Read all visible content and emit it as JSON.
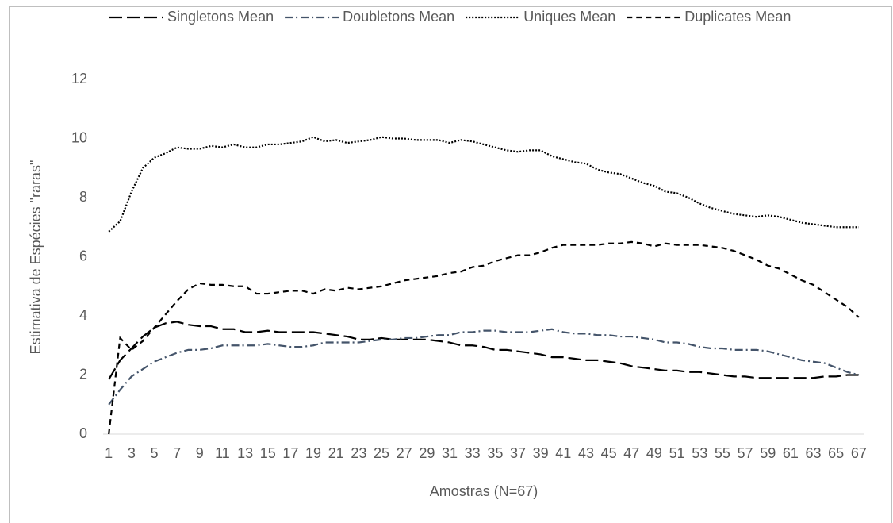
{
  "chart_data": {
    "type": "line",
    "x_label": "Amostras (N=67)",
    "y_label": "Estimativa de Espécies \"raras\"",
    "categories": [
      1,
      null,
      3,
      null,
      5,
      null,
      7,
      null,
      9,
      null,
      11,
      null,
      13,
      null,
      15,
      null,
      17,
      null,
      19,
      null,
      21,
      null,
      23,
      null,
      25,
      null,
      27,
      null,
      29,
      null,
      31,
      null,
      33,
      null,
      35,
      null,
      37,
      null,
      39,
      null,
      41,
      null,
      43,
      null,
      45,
      null,
      47,
      null,
      49,
      null,
      51,
      null,
      53,
      null,
      55,
      null,
      57,
      null,
      59,
      null,
      61,
      null,
      63,
      null,
      65,
      null,
      67
    ],
    "ylim": [
      0,
      12
    ],
    "yticks": [
      0,
      2,
      4,
      6,
      8,
      10,
      12
    ],
    "grid": false,
    "legend": "top",
    "series": [
      {
        "name": "Singletons Mean",
        "color": "#000000",
        "dash": "16,6",
        "values": [
          1.85,
          2.5,
          2.9,
          3.3,
          3.6,
          3.75,
          3.8,
          3.7,
          3.65,
          3.65,
          3.55,
          3.55,
          3.45,
          3.45,
          3.5,
          3.45,
          3.45,
          3.45,
          3.45,
          3.4,
          3.35,
          3.3,
          3.2,
          3.2,
          3.25,
          3.2,
          3.2,
          3.2,
          3.2,
          3.15,
          3.1,
          3.0,
          3.0,
          2.95,
          2.85,
          2.85,
          2.8,
          2.75,
          2.7,
          2.6,
          2.6,
          2.55,
          2.5,
          2.5,
          2.45,
          2.4,
          2.3,
          2.25,
          2.2,
          2.15,
          2.15,
          2.1,
          2.1,
          2.05,
          2.0,
          1.95,
          1.95,
          1.9,
          1.9,
          1.9,
          1.9,
          1.9,
          1.9,
          1.95,
          1.95,
          2.0,
          2.0
        ]
      },
      {
        "name": "Doubletons Mean",
        "color": "#44546a",
        "dash": "10,4,2,4",
        "values": [
          1.0,
          1.5,
          1.95,
          2.2,
          2.45,
          2.6,
          2.75,
          2.85,
          2.85,
          2.9,
          3.0,
          3.0,
          3.0,
          3.0,
          3.05,
          3.0,
          2.95,
          2.95,
          3.0,
          3.1,
          3.1,
          3.1,
          3.1,
          3.15,
          3.2,
          3.2,
          3.25,
          3.25,
          3.3,
          3.35,
          3.35,
          3.45,
          3.45,
          3.5,
          3.5,
          3.45,
          3.45,
          3.45,
          3.5,
          3.55,
          3.45,
          3.4,
          3.4,
          3.35,
          3.35,
          3.3,
          3.3,
          3.25,
          3.2,
          3.1,
          3.1,
          3.05,
          2.95,
          2.9,
          2.9,
          2.85,
          2.85,
          2.85,
          2.8,
          2.7,
          2.6,
          2.5,
          2.45,
          2.4,
          2.25,
          2.1,
          2.0
        ]
      },
      {
        "name": "Uniques Mean",
        "color": "#000000",
        "dash": "2,2",
        "values": [
          6.85,
          7.2,
          8.2,
          9.0,
          9.35,
          9.5,
          9.7,
          9.65,
          9.65,
          9.75,
          9.7,
          9.8,
          9.7,
          9.7,
          9.8,
          9.8,
          9.85,
          9.9,
          10.05,
          9.9,
          9.95,
          9.85,
          9.9,
          9.95,
          10.05,
          10.0,
          10.0,
          9.95,
          9.95,
          9.95,
          9.85,
          9.95,
          9.9,
          9.8,
          9.7,
          9.6,
          9.55,
          9.6,
          9.6,
          9.4,
          9.3,
          9.2,
          9.15,
          8.95,
          8.85,
          8.8,
          8.65,
          8.5,
          8.4,
          8.2,
          8.15,
          8.0,
          7.8,
          7.65,
          7.55,
          7.45,
          7.4,
          7.35,
          7.4,
          7.35,
          7.25,
          7.15,
          7.1,
          7.05,
          7.0,
          7.0,
          7.0
        ]
      },
      {
        "name": "Duplicates Mean",
        "color": "#000000",
        "dash": "7,5",
        "values": [
          0,
          3.25,
          2.85,
          3.15,
          3.6,
          4.05,
          4.5,
          4.9,
          5.1,
          5.05,
          5.05,
          5.0,
          5.0,
          4.75,
          4.75,
          4.8,
          4.85,
          4.85,
          4.75,
          4.9,
          4.85,
          4.95,
          4.9,
          4.95,
          5.0,
          5.1,
          5.2,
          5.25,
          5.3,
          5.35,
          5.45,
          5.5,
          5.65,
          5.7,
          5.85,
          5.95,
          6.05,
          6.05,
          6.15,
          6.3,
          6.4,
          6.4,
          6.4,
          6.4,
          6.45,
          6.45,
          6.5,
          6.45,
          6.35,
          6.45,
          6.4,
          6.4,
          6.4,
          6.35,
          6.3,
          6.2,
          6.05,
          5.9,
          5.7,
          5.6,
          5.4,
          5.2,
          5.05,
          4.8,
          4.55,
          4.3,
          3.95
        ]
      }
    ]
  }
}
